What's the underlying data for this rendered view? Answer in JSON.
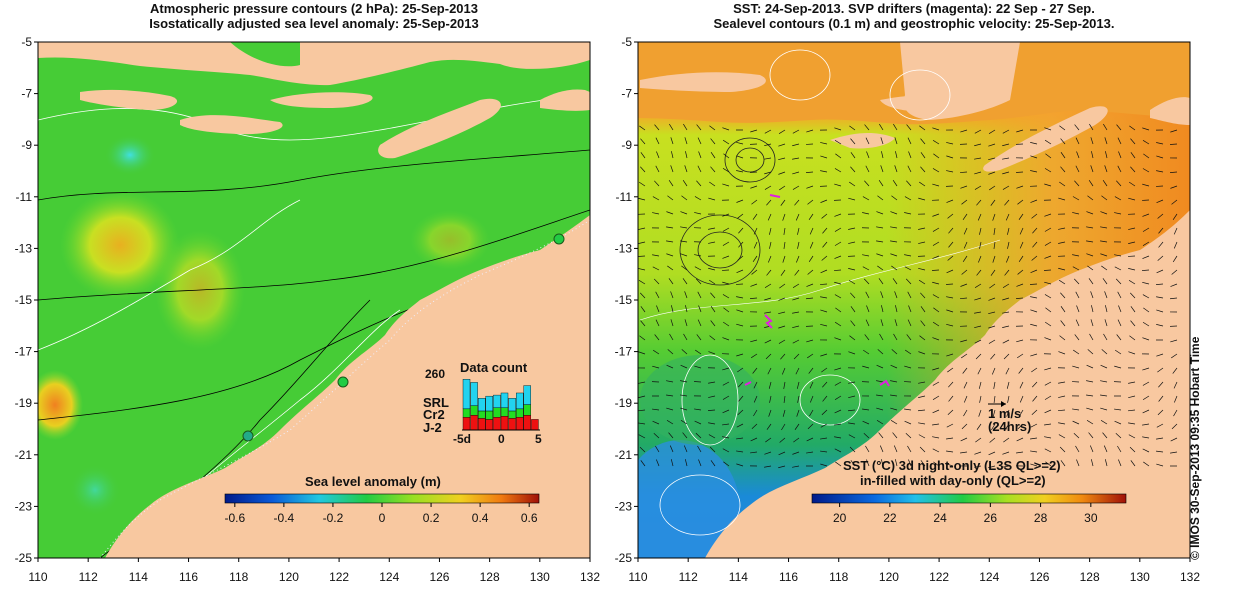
{
  "left_panel": {
    "title_line1": "Atmospheric pressure contours (2 hPa): 25-Sep-2013",
    "title_line2": "Isostatically adjusted sea level anomaly: 25-Sep-2013",
    "colorbar_label": "Sea level anomaly (m)",
    "colorbar_ticks": [
      "-0.6",
      "-0.4",
      "-0.2",
      "0",
      "0.2",
      "0.4",
      "0.6"
    ],
    "data_count": {
      "title": "Data count",
      "ymax_label": "260",
      "x_labels": [
        "-5d",
        "0",
        "5"
      ],
      "legend": [
        "SRL",
        "Cr2",
        "J-2"
      ],
      "legend_colors": [
        "#22d3f0",
        "#22dd22",
        "#ee1111"
      ],
      "days": [
        -5,
        -4,
        -3,
        -2,
        -1,
        0,
        1,
        2,
        3,
        4
      ],
      "counts_j2": [
        60,
        70,
        55,
        50,
        60,
        65,
        55,
        60,
        70,
        50
      ],
      "counts_cr2": [
        40,
        45,
        35,
        40,
        45,
        40,
        35,
        40,
        50,
        0
      ],
      "counts_srl": [
        140,
        110,
        60,
        70,
        60,
        70,
        60,
        75,
        90,
        0
      ]
    }
  },
  "right_panel": {
    "title_line1": "SST: 24-Sep-2013. SVP drifters (magenta): 22 Sep - 27 Sep.",
    "title_line2": "Sealevel contours (0.1 m) and geostrophic velocity: 25-Sep-2013.",
    "colorbar_label_line1": "SST (°C) 3d night-only (L3S QL>=2)",
    "colorbar_label_line2": "in-filled with day-only (QL>=2)",
    "colorbar_ticks": [
      "20",
      "22",
      "24",
      "26",
      "28",
      "30"
    ],
    "scale_label": "1 m/s",
    "scale_sublabel": "(24hrs)"
  },
  "axes": {
    "lat_ticks": [
      "-5",
      "-7",
      "-9",
      "-11",
      "-13",
      "-15",
      "-17",
      "-19",
      "-21",
      "-23",
      "-25"
    ],
    "lon_ticks": [
      "110",
      "112",
      "114",
      "116",
      "118",
      "120",
      "122",
      "124",
      "126",
      "128",
      "130",
      "132"
    ]
  },
  "credit": "© IMOS 30-Sep-2013 09:35 Hobart Time",
  "colors": {
    "land": "#f8c8a0",
    "ocean_green": "#44cc33",
    "sst_orange": "#f49a22"
  }
}
